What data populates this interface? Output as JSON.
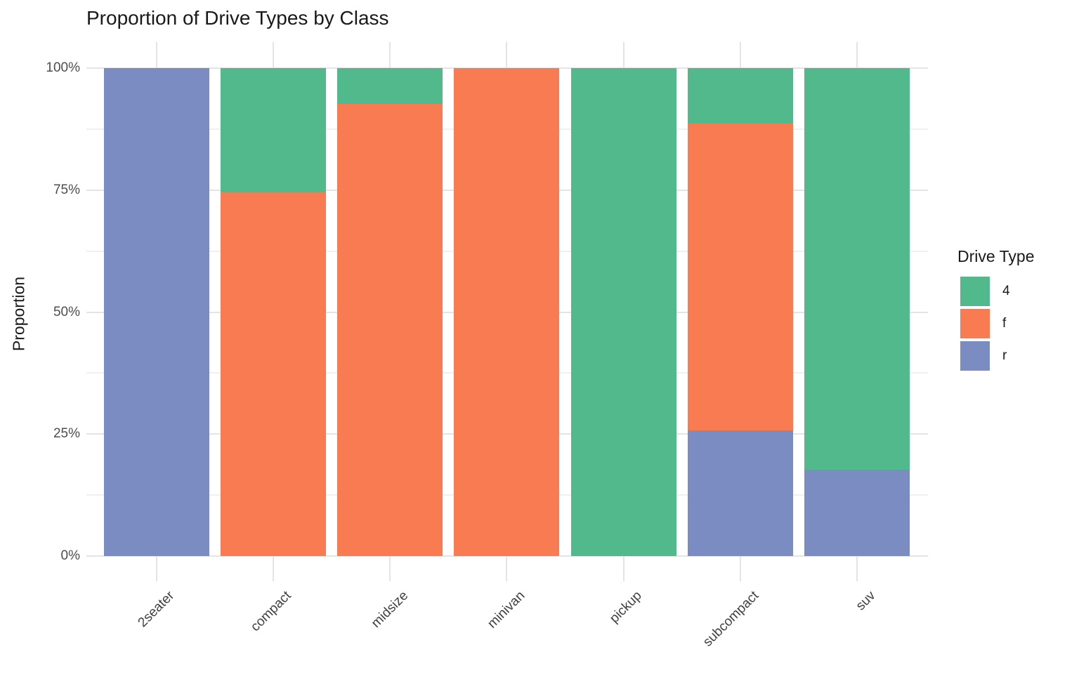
{
  "title": "Proportion of Drive Types by Class",
  "y_axis": {
    "label": "Proportion",
    "tick_labels": [
      "0%",
      "25%",
      "50%",
      "75%",
      "100%"
    ],
    "tick_values": [
      0,
      0.25,
      0.5,
      0.75,
      1.0
    ],
    "minor_tick_values": [
      0.125,
      0.375,
      0.625,
      0.875
    ]
  },
  "x_axis": {
    "label": "",
    "tick_labels": [
      "2seater",
      "compact",
      "midsize",
      "minivan",
      "pickup",
      "subcompact",
      "suv"
    ]
  },
  "legend": {
    "title": "Drive Type",
    "entries": [
      {
        "label": "4",
        "color": "#52B98C"
      },
      {
        "label": "f",
        "color": "#F87B51"
      },
      {
        "label": "r",
        "color": "#7B8CC3"
      }
    ]
  },
  "colors": {
    "grid_major": "#e4e4e4",
    "grid_minor": "#f0f0f0",
    "axis_text": "#4d4d4d",
    "text": "#1a1a1a",
    "background": "#ffffff"
  },
  "chart_data": {
    "type": "bar",
    "variant": "stacked-proportion",
    "title": "Proportion of Drive Types by Class",
    "xlabel": "",
    "ylabel": "Proportion",
    "ylim": [
      0,
      1
    ],
    "grid": true,
    "legend_title": "Drive Type",
    "legend_position": "right",
    "categories": [
      "2seater",
      "compact",
      "midsize",
      "minivan",
      "pickup",
      "subcompact",
      "suv"
    ],
    "stack_order_bottom_to_top": [
      "r",
      "f",
      "4"
    ],
    "series": [
      {
        "name": "4",
        "color": "#52B98C",
        "values": [
          0,
          0.2553,
          0.0732,
          0,
          1.0,
          0.1143,
          0.8226
        ]
      },
      {
        "name": "f",
        "color": "#F87B51",
        "values": [
          0,
          0.7447,
          0.9268,
          1.0,
          0,
          0.6286,
          0
        ]
      },
      {
        "name": "r",
        "color": "#7B8CC3",
        "values": [
          1.0,
          0,
          0,
          0,
          0,
          0.2571,
          0.1774
        ]
      }
    ]
  }
}
